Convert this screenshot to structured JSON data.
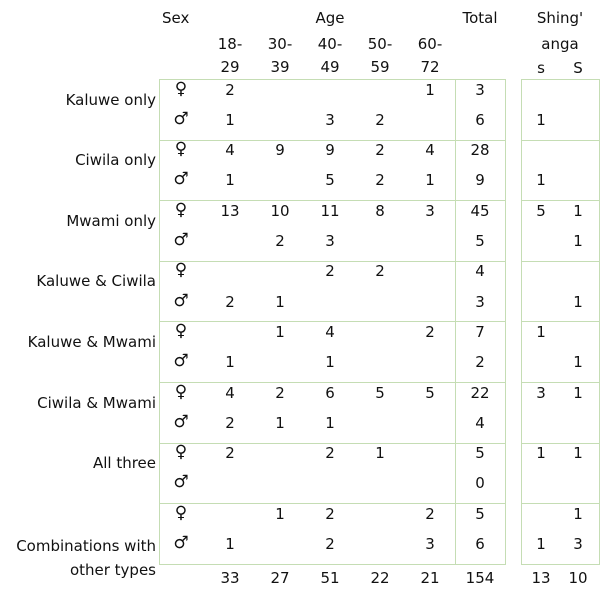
{
  "header": {
    "sex": "Sex",
    "age": "Age",
    "total": "Total",
    "shinganga": [
      "Shing'",
      "anga"
    ],
    "age_groups": [
      [
        "18-",
        "29"
      ],
      [
        "30-",
        "39"
      ],
      [
        "40-",
        "49"
      ],
      [
        "50-",
        "59"
      ],
      [
        "60-",
        "72"
      ]
    ],
    "shinganga_sub": [
      "s",
      "S"
    ]
  },
  "symbols": {
    "female": "♀",
    "male": "♂"
  },
  "groups": [
    {
      "label": [
        "Kaluwe only"
      ],
      "rows": [
        {
          "sex": "female",
          "ages": [
            "2",
            "",
            "",
            "",
            "1"
          ],
          "total": "3",
          "s": "",
          "S": ""
        },
        {
          "sex": "male",
          "ages": [
            "1",
            "",
            "3",
            "2",
            ""
          ],
          "total": "6",
          "s": "1",
          "S": ""
        }
      ]
    },
    {
      "label": [
        "Ciwila only"
      ],
      "rows": [
        {
          "sex": "female",
          "ages": [
            "4",
            "9",
            "9",
            "2",
            "4"
          ],
          "total": "28",
          "s": "",
          "S": ""
        },
        {
          "sex": "male",
          "ages": [
            "1",
            "",
            "5",
            "2",
            "1"
          ],
          "total": "9",
          "s": "1",
          "S": ""
        }
      ]
    },
    {
      "label": [
        "Mwami only"
      ],
      "rows": [
        {
          "sex": "female",
          "ages": [
            "13",
            "10",
            "11",
            "8",
            "3"
          ],
          "total": "45",
          "s": "5",
          "S": "1"
        },
        {
          "sex": "male",
          "ages": [
            "",
            "2",
            "3",
            "",
            ""
          ],
          "total": "5",
          "s": "",
          "S": "1"
        }
      ]
    },
    {
      "label": [
        "Kaluwe & Ciwila"
      ],
      "rows": [
        {
          "sex": "female",
          "ages": [
            "",
            "",
            "2",
            "2",
            ""
          ],
          "total": "4",
          "s": "",
          "S": ""
        },
        {
          "sex": "male",
          "ages": [
            "2",
            "1",
            "",
            "",
            ""
          ],
          "total": "3",
          "s": "",
          "S": "1"
        }
      ]
    },
    {
      "label": [
        "Kaluwe & Mwami"
      ],
      "rows": [
        {
          "sex": "female",
          "ages": [
            "",
            "1",
            "4",
            "",
            "2"
          ],
          "total": "7",
          "s": "1",
          "S": ""
        },
        {
          "sex": "male",
          "ages": [
            "1",
            "",
            "1",
            "",
            ""
          ],
          "total": "2",
          "s": "",
          "S": "1"
        }
      ]
    },
    {
      "label": [
        "Ciwila & Mwami"
      ],
      "rows": [
        {
          "sex": "female",
          "ages": [
            "4",
            "2",
            "6",
            "5",
            "5"
          ],
          "total": "22",
          "s": "3",
          "S": "1"
        },
        {
          "sex": "male",
          "ages": [
            "2",
            "1",
            "1",
            "",
            ""
          ],
          "total": "4",
          "s": "",
          "S": ""
        }
      ]
    },
    {
      "label": [
        "All three"
      ],
      "rows": [
        {
          "sex": "female",
          "ages": [
            "2",
            "",
            "2",
            "1",
            ""
          ],
          "total": "5",
          "s": "1",
          "S": "1"
        },
        {
          "sex": "male",
          "ages": [
            "",
            "",
            "",
            "",
            ""
          ],
          "total": "0",
          "s": "",
          "S": ""
        }
      ]
    },
    {
      "label": [
        "Combinations with",
        "other types"
      ],
      "rows": [
        {
          "sex": "female",
          "ages": [
            "",
            "1",
            "2",
            "",
            "2"
          ],
          "total": "5",
          "s": "",
          "S": "1"
        },
        {
          "sex": "male",
          "ages": [
            "1",
            "",
            "2",
            "",
            "3"
          ],
          "total": "6",
          "s": "1",
          "S": "3"
        }
      ]
    }
  ],
  "totals": {
    "ages": [
      "33",
      "27",
      "51",
      "22",
      "21"
    ],
    "total": "154",
    "s": "13",
    "S": "10"
  }
}
